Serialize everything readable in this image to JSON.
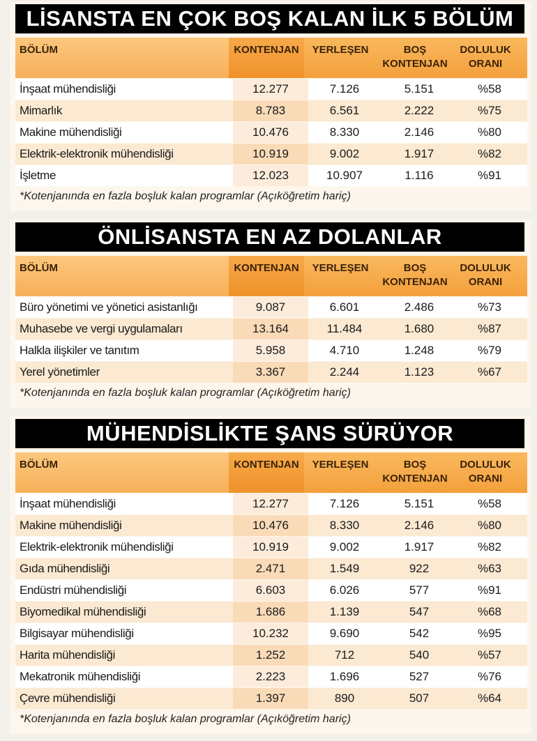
{
  "tables": [
    {
      "title": "LİSANSTA EN ÇOK BOŞ KALAN İLK 5 BÖLÜM",
      "headers": [
        "BÖLÜM",
        "KONTENJAN",
        "YERLEŞEN",
        "BOŞ KONTENJAN",
        "DOLULUK ORANI"
      ],
      "rows": [
        [
          "İnşaat mühendisliği",
          "12.277",
          "7.126",
          "5.151",
          "%58"
        ],
        [
          "Mimarlık",
          "8.783",
          "6.561",
          "2.222",
          "%75"
        ],
        [
          "Makine mühendisliği",
          "10.476",
          "8.330",
          "2.146",
          "%80"
        ],
        [
          "Elektrik-elektronik mühendisliği",
          "10.919",
          "9.002",
          "1.917",
          "%82"
        ],
        [
          "İşletme",
          "12.023",
          "10.907",
          "1.116",
          "%91"
        ]
      ],
      "footnote": "*Kotenjanında en fazla boşluk kalan programlar (Açıköğretim hariç)"
    },
    {
      "title": "ÖNLİSANSTA EN AZ DOLANLAR",
      "headers": [
        "BÖLÜM",
        "KONTENJAN",
        "YERLEŞEN",
        "BOŞ KONTENJAN",
        "DOLULUK ORANI"
      ],
      "rows": [
        [
          "Büro yönetimi ve yönetici asistanlığı",
          "9.087",
          "6.601",
          "2.486",
          "%73"
        ],
        [
          "Muhasebe ve vergi uygulamaları",
          "13.164",
          "11.484",
          "1.680",
          "%87"
        ],
        [
          "Halkla ilişkiler ve tanıtım",
          "5.958",
          "4.710",
          "1.248",
          "%79"
        ],
        [
          "Yerel yönetimler",
          "3.367",
          "2.244",
          "1.123",
          "%67"
        ]
      ],
      "footnote": "*Kotenjanında en fazla boşluk kalan programlar (Açıköğretim hariç)"
    },
    {
      "title": "MÜHENDİSLİKTE ŞANS SÜRÜYOR",
      "headers": [
        "BÖLÜM",
        "KONTENJAN",
        "YERLEŞEN",
        "BOŞ KONTENJAN",
        "DOLULUK ORANI"
      ],
      "rows": [
        [
          "İnşaat mühendisliği",
          "12.277",
          "7.126",
          "5.151",
          "%58"
        ],
        [
          "Makine mühendisliği",
          "10.476",
          "8.330",
          "2.146",
          "%80"
        ],
        [
          "Elektrik-elektronik mühendisliği",
          "10.919",
          "9.002",
          "1.917",
          "%82"
        ],
        [
          "Gıda mühendisliği",
          "2.471",
          "1.549",
          "922",
          "%63"
        ],
        [
          "Endüstri mühendisliği",
          "6.603",
          "6.026",
          "577",
          "%91"
        ],
        [
          "Biyomedikal mühendisliği",
          "1.686",
          "1.139",
          "547",
          "%68"
        ],
        [
          "Bilgisayar mühendisliği",
          "10.232",
          "9.690",
          "542",
          "%95"
        ],
        [
          "Harita mühendisliği",
          "1.252",
          "712",
          "540",
          "%57"
        ],
        [
          "Mekatronik mühendisliği",
          "2.223",
          "1.696",
          "527",
          "%76"
        ],
        [
          "Çevre mühendisliği",
          "1.397",
          "890",
          "507",
          "%64"
        ]
      ],
      "footnote": "*Kotenjanında en fazla boşluk kalan programlar (Açıköğretim hariç)"
    }
  ]
}
